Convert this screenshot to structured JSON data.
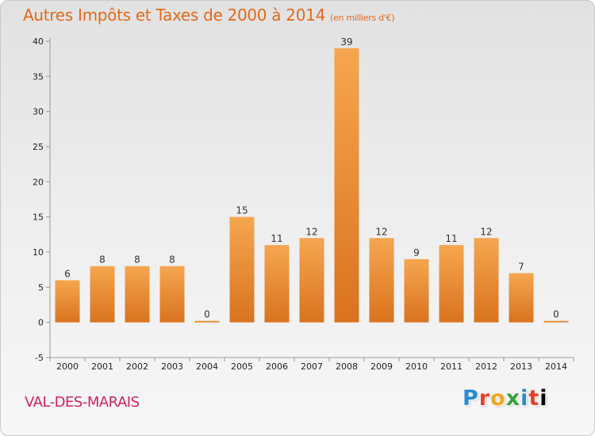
{
  "header": {
    "title": "Autres Impôts et Taxes de 2000 à 2014",
    "subtitle": "(en milliers d'€)"
  },
  "footer": {
    "commune": "VAL-DES-MARAIS",
    "logo_letters": [
      "P",
      "r",
      "o",
      "x",
      "i",
      "t",
      "i"
    ]
  },
  "colors": {
    "title": "#e46a1b",
    "commune": "#d0245a",
    "bar_light": "#f6a650",
    "bar_dark": "#d9731f"
  },
  "chart_data": {
    "type": "bar",
    "title": "Autres Impôts et Taxes de 2000 à 2014",
    "subtitle": "(en milliers d'€)",
    "xlabel": "",
    "ylabel": "",
    "categories": [
      "2000",
      "2001",
      "2002",
      "2003",
      "2004",
      "2005",
      "2006",
      "2007",
      "2008",
      "2009",
      "2010",
      "2011",
      "2012",
      "2013",
      "2014"
    ],
    "values": [
      6,
      8,
      8,
      8,
      0,
      15,
      11,
      12,
      39,
      12,
      9,
      11,
      12,
      7,
      0
    ],
    "ylim": [
      -5,
      40
    ],
    "yticks": [
      -5,
      0,
      5,
      10,
      15,
      20,
      25,
      30,
      35,
      40
    ],
    "grid": false,
    "legend": "none"
  }
}
